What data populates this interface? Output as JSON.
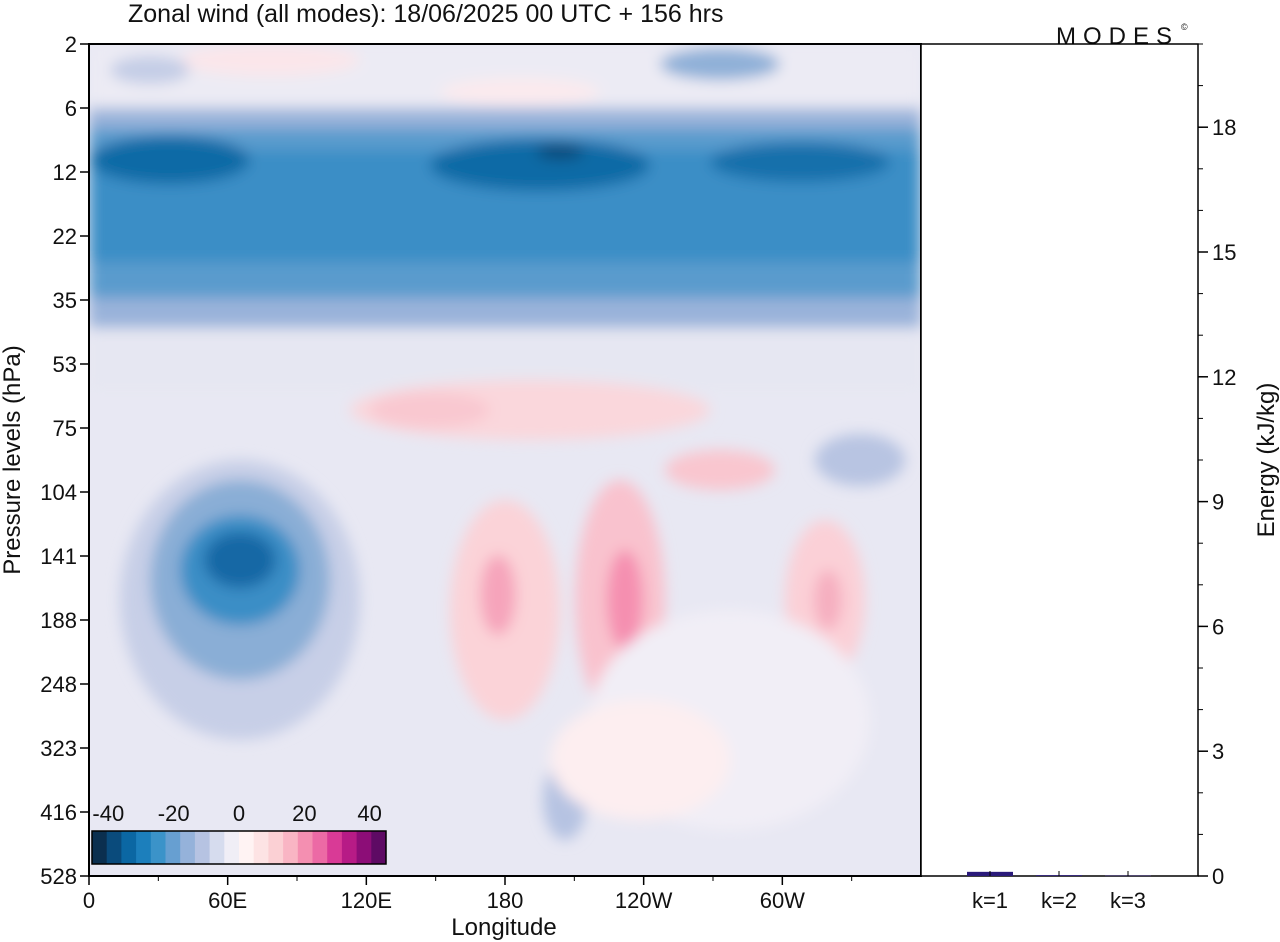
{
  "title": "Zonal wind (all modes):  18/06/2025  00 UTC  + 156 hrs",
  "logo": "MODES",
  "logo_mark": "©",
  "chart_data": [
    {
      "type": "heatmap",
      "title": "Zonal wind (all modes):  18/06/2025  00 UTC  + 156 hrs",
      "xlabel": "Longitude",
      "ylabel": "Pressure levels (hPa)",
      "x_ticks": [
        "0",
        "60E",
        "120E",
        "180",
        "120W",
        "60W"
      ],
      "y_ticks": [
        "2",
        "6",
        "12",
        "22",
        "35",
        "53",
        "75",
        "104",
        "141",
        "188",
        "248",
        "323",
        "416",
        "528"
      ],
      "colorbar": {
        "tick_labels": [
          "-40",
          "-20",
          "0",
          "20",
          "40"
        ],
        "range": [
          -45,
          45
        ],
        "step": 5,
        "colors": [
          "#0b2f4f",
          "#0a4b7c",
          "#0b67a3",
          "#1c7fbc",
          "#3b93c9",
          "#679fd1",
          "#95b2da",
          "#b6c3e2",
          "#d6dcee",
          "#f0eef6",
          "#fff3f3",
          "#fde3e4",
          "#fbd0d4",
          "#f9b5c4",
          "#f48fb1",
          "#ec6aa5",
          "#d93a96",
          "#b71b86",
          "#8c0d77",
          "#5e0a64"
        ]
      },
      "grid": false
    },
    {
      "type": "bar",
      "ylabel": "Energy (kJ/kg)",
      "categories": [
        "k=1",
        "k=2",
        "k=3"
      ],
      "values": [
        0.1,
        0.02,
        0.01
      ],
      "ylim": [
        0,
        20
      ],
      "y_ticks": [
        "0",
        "3",
        "6",
        "9",
        "12",
        "15",
        "18"
      ],
      "bar_color": "#2a1a7a"
    }
  ]
}
